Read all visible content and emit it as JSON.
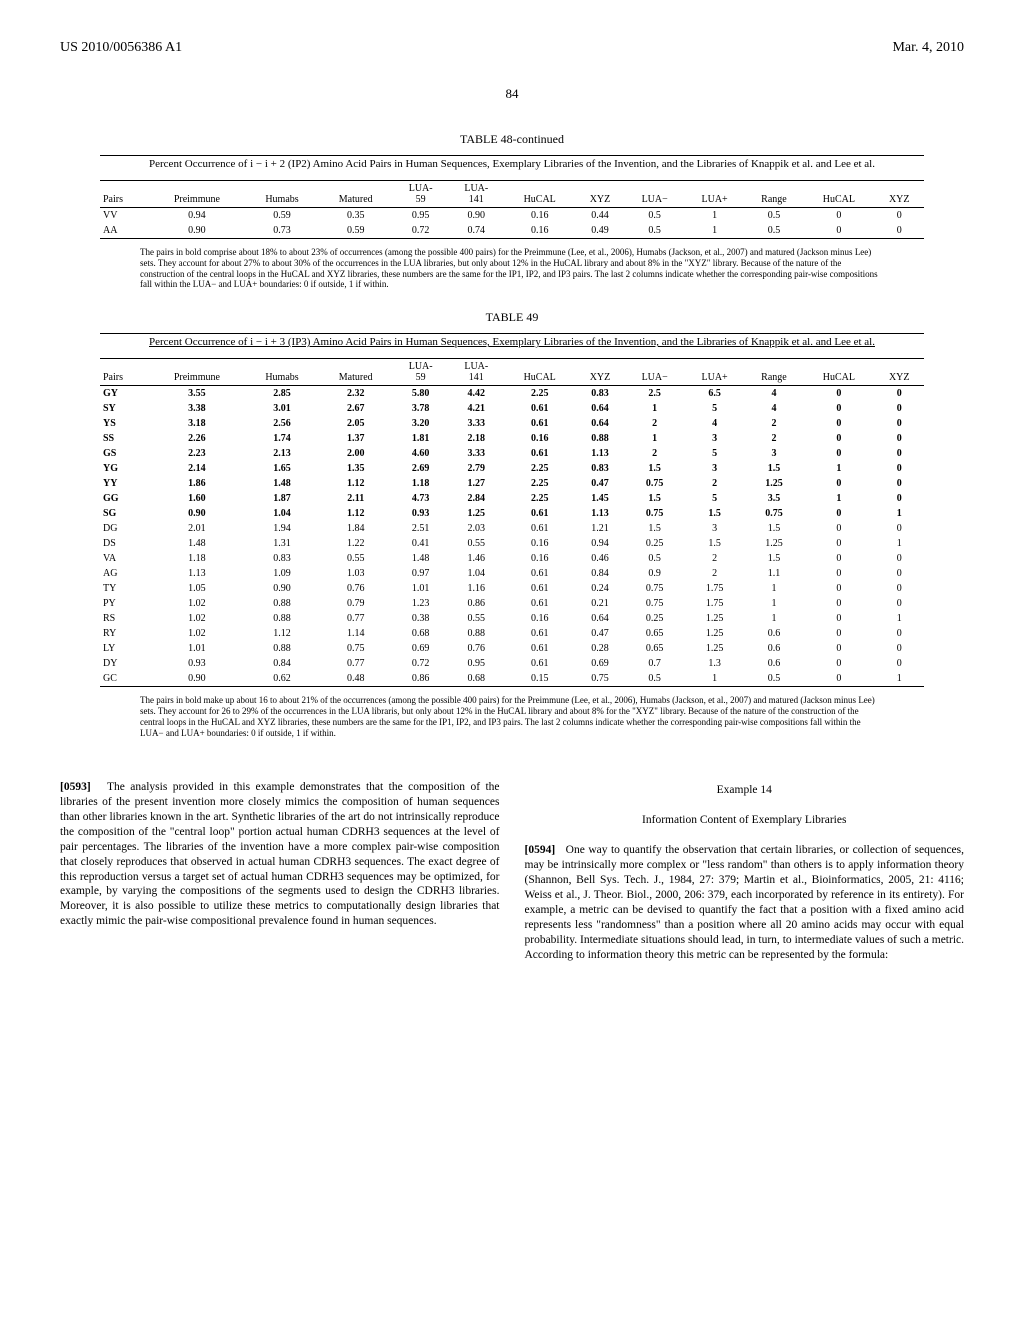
{
  "header": {
    "pub_num": "US 2010/0056386 A1",
    "date": "Mar. 4, 2010",
    "page": "84"
  },
  "table48": {
    "title": "TABLE 48-continued",
    "caption": "Percent Occurrence of i − i + 2 (IP2) Amino Acid Pairs in Human Sequences, Exemplary Libraries of the Invention, and the Libraries of Knappik et al. and Lee et al.",
    "columns": [
      "Pairs",
      "Preimmune",
      "Humabs",
      "Matured",
      "LUA-59",
      "LUA-141",
      "HuCAL",
      "XYZ",
      "LUA−",
      "LUA+",
      "Range",
      "HuCAL",
      "XYZ"
    ],
    "rows": [
      {
        "bold": false,
        "c": [
          "VV",
          "0.94",
          "0.59",
          "0.35",
          "0.95",
          "0.90",
          "0.16",
          "0.44",
          "0.5",
          "1",
          "0.5",
          "0",
          "0"
        ]
      },
      {
        "bold": false,
        "c": [
          "AA",
          "0.90",
          "0.73",
          "0.59",
          "0.72",
          "0.74",
          "0.16",
          "0.49",
          "0.5",
          "1",
          "0.5",
          "0",
          "0"
        ]
      }
    ],
    "footnote": "The pairs in bold comprise about 18% to about 23% of occurrences (among the possible 400 pairs) for the Preimmune (Lee, et al., 2006), Humabs (Jackson, et al., 2007) and matured (Jackson minus Lee) sets. They account for about 27% to about 30% of the occurrences in the LUA libraries, but only about 12% in the HuCAL library and about 8% in the \"XYZ\" library. Because of the nature of the construction of the central loops in the HuCAL and XYZ libraries, these numbers are the same for the IP1, IP2, and IP3 pairs. The last 2 columns indicate whether the corresponding pair-wise compositions fall within the LUA− and LUA+ boundaries: 0 if outside, 1 if within."
  },
  "table49": {
    "title": "TABLE 49",
    "caption": "Percent Occurrence of i − i + 3 (IP3) Amino Acid Pairs in Human Sequences, Exemplary Libraries of the Invention, and the Libraries of Knappik et al. and Lee et al.",
    "columns": [
      "Pairs",
      "Preimmune",
      "Humabs",
      "Matured",
      "LUA-59",
      "LUA-141",
      "HuCAL",
      "XYZ",
      "LUA−",
      "LUA+",
      "Range",
      "HuCAL",
      "XYZ"
    ],
    "rows": [
      {
        "bold": true,
        "c": [
          "GY",
          "3.55",
          "2.85",
          "2.32",
          "5.80",
          "4.42",
          "2.25",
          "0.83",
          "2.5",
          "6.5",
          "4",
          "0",
          "0"
        ]
      },
      {
        "bold": true,
        "c": [
          "SY",
          "3.38",
          "3.01",
          "2.67",
          "3.78",
          "4.21",
          "0.61",
          "0.64",
          "1",
          "5",
          "4",
          "0",
          "0"
        ]
      },
      {
        "bold": true,
        "c": [
          "YS",
          "3.18",
          "2.56",
          "2.05",
          "3.20",
          "3.33",
          "0.61",
          "0.64",
          "2",
          "4",
          "2",
          "0",
          "0"
        ]
      },
      {
        "bold": true,
        "c": [
          "SS",
          "2.26",
          "1.74",
          "1.37",
          "1.81",
          "2.18",
          "0.16",
          "0.88",
          "1",
          "3",
          "2",
          "0",
          "0"
        ]
      },
      {
        "bold": true,
        "c": [
          "GS",
          "2.23",
          "2.13",
          "2.00",
          "4.60",
          "3.33",
          "0.61",
          "1.13",
          "2",
          "5",
          "3",
          "0",
          "0"
        ]
      },
      {
        "bold": true,
        "c": [
          "YG",
          "2.14",
          "1.65",
          "1.35",
          "2.69",
          "2.79",
          "2.25",
          "0.83",
          "1.5",
          "3",
          "1.5",
          "1",
          "0"
        ]
      },
      {
        "bold": true,
        "c": [
          "YY",
          "1.86",
          "1.48",
          "1.12",
          "1.18",
          "1.27",
          "2.25",
          "0.47",
          "0.75",
          "2",
          "1.25",
          "0",
          "0"
        ]
      },
      {
        "bold": true,
        "c": [
          "GG",
          "1.60",
          "1.87",
          "2.11",
          "4.73",
          "2.84",
          "2.25",
          "1.45",
          "1.5",
          "5",
          "3.5",
          "1",
          "0"
        ]
      },
      {
        "bold": true,
        "c": [
          "SG",
          "0.90",
          "1.04",
          "1.12",
          "0.93",
          "1.25",
          "0.61",
          "1.13",
          "0.75",
          "1.5",
          "0.75",
          "0",
          "1"
        ]
      },
      {
        "bold": false,
        "c": [
          "DG",
          "2.01",
          "1.94",
          "1.84",
          "2.51",
          "2.03",
          "0.61",
          "1.21",
          "1.5",
          "3",
          "1.5",
          "0",
          "0"
        ]
      },
      {
        "bold": false,
        "c": [
          "DS",
          "1.48",
          "1.31",
          "1.22",
          "0.41",
          "0.55",
          "0.16",
          "0.94",
          "0.25",
          "1.5",
          "1.25",
          "0",
          "1"
        ]
      },
      {
        "bold": false,
        "c": [
          "VA",
          "1.18",
          "0.83",
          "0.55",
          "1.48",
          "1.46",
          "0.16",
          "0.46",
          "0.5",
          "2",
          "1.5",
          "0",
          "0"
        ]
      },
      {
        "bold": false,
        "c": [
          "AG",
          "1.13",
          "1.09",
          "1.03",
          "0.97",
          "1.04",
          "0.61",
          "0.84",
          "0.9",
          "2",
          "1.1",
          "0",
          "0"
        ]
      },
      {
        "bold": false,
        "c": [
          "TY",
          "1.05",
          "0.90",
          "0.76",
          "1.01",
          "1.16",
          "0.61",
          "0.24",
          "0.75",
          "1.75",
          "1",
          "0",
          "0"
        ]
      },
      {
        "bold": false,
        "c": [
          "PY",
          "1.02",
          "0.88",
          "0.79",
          "1.23",
          "0.86",
          "0.61",
          "0.21",
          "0.75",
          "1.75",
          "1",
          "0",
          "0"
        ]
      },
      {
        "bold": false,
        "c": [
          "RS",
          "1.02",
          "0.88",
          "0.77",
          "0.38",
          "0.55",
          "0.16",
          "0.64",
          "0.25",
          "1.25",
          "1",
          "0",
          "1"
        ]
      },
      {
        "bold": false,
        "c": [
          "RY",
          "1.02",
          "1.12",
          "1.14",
          "0.68",
          "0.88",
          "0.61",
          "0.47",
          "0.65",
          "1.25",
          "0.6",
          "0",
          "0"
        ]
      },
      {
        "bold": false,
        "c": [
          "LY",
          "1.01",
          "0.88",
          "0.75",
          "0.69",
          "0.76",
          "0.61",
          "0.28",
          "0.65",
          "1.25",
          "0.6",
          "0",
          "0"
        ]
      },
      {
        "bold": false,
        "c": [
          "DY",
          "0.93",
          "0.84",
          "0.77",
          "0.72",
          "0.95",
          "0.61",
          "0.69",
          "0.7",
          "1.3",
          "0.6",
          "0",
          "0"
        ]
      },
      {
        "bold": false,
        "c": [
          "GC",
          "0.90",
          "0.62",
          "0.48",
          "0.86",
          "0.68",
          "0.15",
          "0.75",
          "0.5",
          "1",
          "0.5",
          "0",
          "1"
        ]
      }
    ],
    "footnote": "The pairs in bold make up about 16 to about 21% of the occurrences (among the possible 400 pairs) for the Preimmune (Lee, et al., 2006), Humabs (Jackson, et al., 2007) and matured (Jackson minus Lee) sets. They account for 26 to 29% of the occurrences in the LUA libraris, but only about 12% in the HuCAL library and about 8% for the \"XYZ\" library. Because of the nature of the construction of the central loops in the HuCAL and XYZ libraries, these numbers are the same for the IP1, IP2, and IP3 pairs. The last 2 columns indicate whether the corresponding pair-wise compositions fall within the LUA− and LUA+ boundaries: 0 if outside, 1 if within."
  },
  "body": {
    "para0593_label": "[0593]",
    "para0593": "The analysis provided in this example demonstrates that the composition of the libraries of the present invention more closely mimics the composition of human sequences than other libraries known in the art. Synthetic libraries of the art do not intrinsically reproduce the composition of the \"central loop\" portion actual human CDRH3 sequences at the level of pair percentages. The libraries of the invention have a more complex pair-wise composition that closely reproduces that observed in actual human CDRH3 sequences. The exact degree of this reproduction versus a target set of actual human CDRH3 sequences may be optimized, for example, by varying the compositions of the segments used to design the CDRH3 libraries. Moreover, it is also possible to utilize these metrics to computationally design libraries that exactly mimic the pair-wise compositional prevalence found in human sequences.",
    "example14": "Example 14",
    "ex14_title": "Information Content of Exemplary Libraries",
    "para0594_label": "[0594]",
    "para0594": "One way to quantify the observation that certain libraries, or collection of sequences, may be intrinsically more complex or \"less random\" than others is to apply information theory (Shannon, Bell Sys. Tech. J., 1984, 27: 379; Martin et al., Bioinformatics, 2005, 21: 4116; Weiss et al., J. Theor. Biol., 2000, 206: 379, each incorporated by reference in its entirety). For example, a metric can be devised to quantify the fact that a position with a fixed amino acid represents less \"randomness\" than a position where all 20 amino acids may occur with equal probability. Intermediate situations should lead, in turn, to intermediate values of such a metric. According to information theory this metric can be represented by the formula:"
  }
}
